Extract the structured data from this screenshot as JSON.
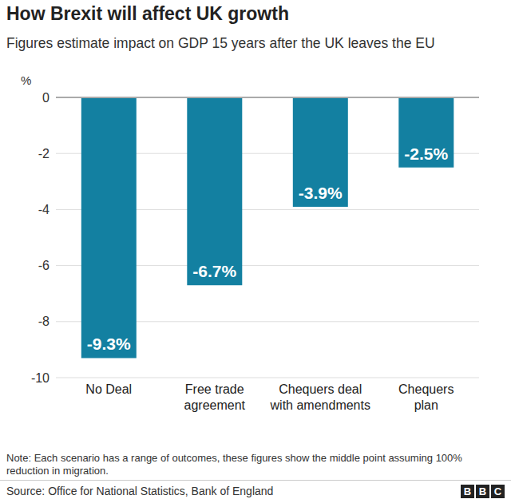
{
  "chart_data": {
    "type": "bar",
    "title": "How Brexit will affect UK growth",
    "subtitle": "Figures estimate impact on GDP 15 years after the UK leaves the EU",
    "y_label": "%",
    "categories": [
      "No Deal",
      "Free trade\nagreement",
      "Chequers deal\nwith amendments",
      "Chequers\nplan"
    ],
    "values": [
      -9.3,
      -6.7,
      -3.9,
      -2.5
    ],
    "value_labels": [
      "-9.3%",
      "-6.7%",
      "-3.9%",
      "-2.5%"
    ],
    "data_labels": true,
    "color": "#1380a1",
    "ylim": [
      -10,
      0
    ],
    "yticks": [
      -10,
      -8,
      -6,
      -4,
      -2,
      0
    ],
    "grid": true,
    "note": "Note: Each scenario has a range of outcomes, these figures show the middle point assuming 100% reduction in migration.",
    "source": "Source: Office for National Statistics, Bank of England",
    "logo": "BBC"
  }
}
